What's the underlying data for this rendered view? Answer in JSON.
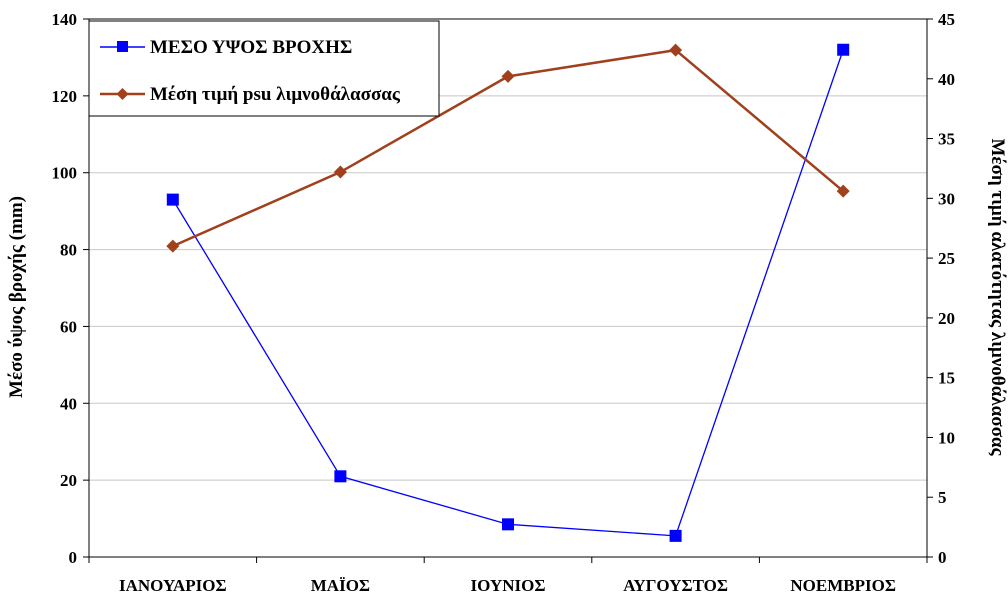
{
  "chart_data": {
    "type": "line",
    "title": "",
    "categories": [
      "ΙΑΝΟΥΑΡΙΟΣ",
      "ΜΑΪΟΣ",
      "ΙΟΥΝΙΟΣ",
      "ΑΥΓΟΥΣΤΟΣ",
      "ΝΟΕΜΒΡΙΟΣ"
    ],
    "ylabel": "Μέσο ύψος βροχής (mm)",
    "y2label": "Μέση τιμή αλατότητας λιμνοθάλασσας",
    "ylim": [
      0,
      140
    ],
    "y2lim": [
      0,
      45
    ],
    "yticks": [
      0,
      20,
      40,
      60,
      80,
      100,
      120,
      140
    ],
    "y2ticks": [
      0,
      5,
      10,
      15,
      20,
      25,
      30,
      35,
      40,
      45
    ],
    "grid": true,
    "legend": "top-left",
    "series": [
      {
        "name": "ΜΕΣΟ ΥΨΟΣ ΒΡΟΧΗΣ",
        "axis": "left",
        "marker": "square",
        "color": "#0000ff",
        "values": [
          93,
          21,
          8.5,
          5.5,
          132
        ]
      },
      {
        "name": "Μέση τιμή psu λιμνοθάλασσας",
        "axis": "right",
        "marker": "diamond",
        "color": "#a0401c",
        "values": [
          26,
          32.2,
          40.2,
          42.4,
          30.6
        ]
      }
    ]
  }
}
